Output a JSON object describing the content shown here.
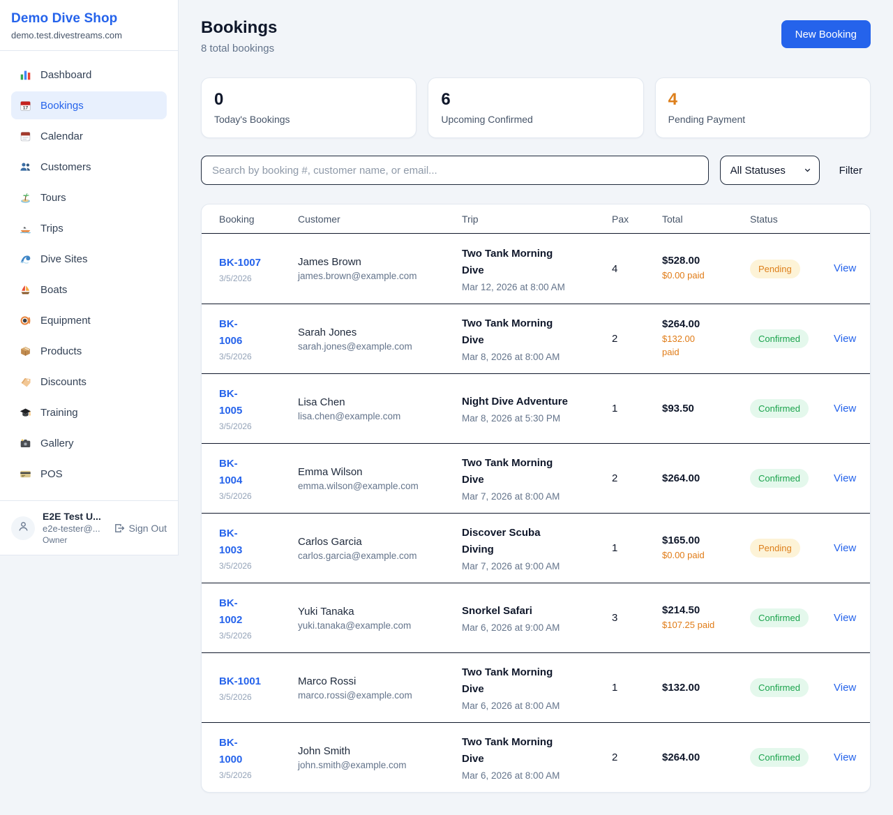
{
  "sidebar": {
    "brand": "Demo Dive Shop",
    "domain": "demo.test.divestreams.com",
    "items": [
      {
        "label": "Dashboard",
        "icon": "dashboard-icon",
        "active": false
      },
      {
        "label": "Bookings",
        "icon": "bookings-icon",
        "active": true
      },
      {
        "label": "Calendar",
        "icon": "calendar-icon",
        "active": false
      },
      {
        "label": "Customers",
        "icon": "customers-icon",
        "active": false
      },
      {
        "label": "Tours",
        "icon": "tours-icon",
        "active": false
      },
      {
        "label": "Trips",
        "icon": "trips-icon",
        "active": false
      },
      {
        "label": "Dive Sites",
        "icon": "dive-sites-icon",
        "active": false
      },
      {
        "label": "Boats",
        "icon": "boats-icon",
        "active": false
      },
      {
        "label": "Equipment",
        "icon": "equipment-icon",
        "active": false
      },
      {
        "label": "Products",
        "icon": "products-icon",
        "active": false
      },
      {
        "label": "Discounts",
        "icon": "discounts-icon",
        "active": false
      },
      {
        "label": "Training",
        "icon": "training-icon",
        "active": false
      },
      {
        "label": "Gallery",
        "icon": "gallery-icon",
        "active": false
      },
      {
        "label": "POS",
        "icon": "pos-icon",
        "active": false
      }
    ],
    "user": {
      "name": "E2E Test U...",
      "email": "e2e-tester@...",
      "role": "Owner",
      "sign_out_label": "Sign Out"
    }
  },
  "header": {
    "title": "Bookings",
    "subtitle": "8 total bookings",
    "new_booking_label": "New Booking"
  },
  "stats": [
    {
      "value": "0",
      "label": "Today's Bookings",
      "value_color": "#0f172a"
    },
    {
      "value": "6",
      "label": "Upcoming Confirmed",
      "value_color": "#0f172a"
    },
    {
      "value": "4",
      "label": "Pending Payment",
      "value_color": "#dd7f1b"
    }
  ],
  "filters": {
    "search_placeholder": "Search by booking #, customer name, or email...",
    "status_selected": "All Statuses",
    "filter_label": "Filter"
  },
  "table": {
    "columns": [
      "Booking",
      "Customer",
      "Trip",
      "Pax",
      "Total",
      "Status"
    ],
    "view_label": "View",
    "rows": [
      {
        "id_lines": [
          "BK-1007"
        ],
        "date": "3/5/2026",
        "customer": "James Brown",
        "email": "james.brown@example.com",
        "trip_lines": [
          "Two Tank Morning",
          "Dive"
        ],
        "trip_date": "Mar 12, 2026 at 8:00 AM",
        "pax": "4",
        "total": "$528.00",
        "paid_lines": [
          "$0.00 paid"
        ],
        "status": "Pending"
      },
      {
        "id_lines": [
          "BK-",
          "1006"
        ],
        "date": "3/5/2026",
        "customer": "Sarah Jones",
        "email": "sarah.jones@example.com",
        "trip_lines": [
          "Two Tank Morning",
          "Dive"
        ],
        "trip_date": "Mar 8, 2026 at 8:00 AM",
        "pax": "2",
        "total": "$264.00",
        "paid_lines": [
          "$132.00",
          "paid"
        ],
        "status": "Confirmed"
      },
      {
        "id_lines": [
          "BK-",
          "1005"
        ],
        "date": "3/5/2026",
        "customer": "Lisa Chen",
        "email": "lisa.chen@example.com",
        "trip_lines": [
          "Night Dive Adventure"
        ],
        "trip_date": "Mar 8, 2026 at 5:30 PM",
        "pax": "1",
        "total": "$93.50",
        "paid_lines": [],
        "status": "Confirmed"
      },
      {
        "id_lines": [
          "BK-",
          "1004"
        ],
        "date": "3/5/2026",
        "customer": "Emma Wilson",
        "email": "emma.wilson@example.com",
        "trip_lines": [
          "Two Tank Morning",
          "Dive"
        ],
        "trip_date": "Mar 7, 2026 at 8:00 AM",
        "pax": "2",
        "total": "$264.00",
        "paid_lines": [],
        "status": "Confirmed"
      },
      {
        "id_lines": [
          "BK-",
          "1003"
        ],
        "date": "3/5/2026",
        "customer": "Carlos Garcia",
        "email": "carlos.garcia@example.com",
        "trip_lines": [
          "Discover Scuba",
          "Diving"
        ],
        "trip_date": "Mar 7, 2026 at 9:00 AM",
        "pax": "1",
        "total": "$165.00",
        "paid_lines": [
          "$0.00 paid"
        ],
        "status": "Pending"
      },
      {
        "id_lines": [
          "BK-",
          "1002"
        ],
        "date": "3/5/2026",
        "customer": "Yuki Tanaka",
        "email": "yuki.tanaka@example.com",
        "trip_lines": [
          "Snorkel Safari"
        ],
        "trip_date": "Mar 6, 2026 at 9:00 AM",
        "pax": "3",
        "total": "$214.50",
        "paid_lines": [
          "$107.25 paid"
        ],
        "status": "Confirmed"
      },
      {
        "id_lines": [
          "BK-1001"
        ],
        "date": "3/5/2026",
        "customer": "Marco Rossi",
        "email": "marco.rossi@example.com",
        "trip_lines": [
          "Two Tank Morning",
          "Dive"
        ],
        "trip_date": "Mar 6, 2026 at 8:00 AM",
        "pax": "1",
        "total": "$132.00",
        "paid_lines": [],
        "status": "Confirmed"
      },
      {
        "id_lines": [
          "BK-",
          "1000"
        ],
        "date": "3/5/2026",
        "customer": "John Smith",
        "email": "john.smith@example.com",
        "trip_lines": [
          "Two Tank Morning",
          "Dive"
        ],
        "trip_date": "Mar 6, 2026 at 8:00 AM",
        "pax": "2",
        "total": "$264.00",
        "paid_lines": [],
        "status": "Confirmed"
      }
    ]
  },
  "colors": {
    "accent_blue": "#2563eb",
    "pending_text": "#dd7f1b",
    "pending_bg": "#fdf3d7",
    "confirmed_text": "#1aa34c",
    "confirmed_bg": "#e4f8ec",
    "paid_orange": "#e07b16"
  }
}
